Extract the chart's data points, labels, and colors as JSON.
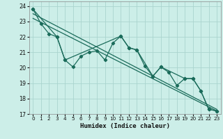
{
  "xlabel": "Humidex (Indice chaleur)",
  "bg_color": "#cceee8",
  "grid_color": "#aad4ce",
  "line_color": "#1a6b5a",
  "xlim": [
    -0.5,
    23.5
  ],
  "ylim": [
    17,
    24.3
  ],
  "yticks": [
    17,
    18,
    19,
    20,
    21,
    22,
    23,
    24
  ],
  "xticks": [
    0,
    1,
    2,
    3,
    4,
    5,
    6,
    7,
    8,
    9,
    10,
    11,
    12,
    13,
    14,
    15,
    16,
    17,
    18,
    19,
    20,
    21,
    22,
    23
  ],
  "series_all_x": [
    0,
    1,
    2,
    3,
    4,
    5,
    6,
    7,
    8,
    9,
    10,
    11,
    12,
    13,
    14,
    15,
    16,
    17,
    18,
    19,
    20,
    21,
    22,
    23
  ],
  "series_all_y": [
    23.8,
    22.85,
    22.2,
    22.0,
    20.5,
    20.05,
    20.75,
    21.0,
    21.1,
    20.5,
    21.6,
    22.05,
    21.3,
    21.15,
    20.1,
    19.45,
    20.05,
    19.7,
    18.85,
    19.3,
    19.3,
    18.5,
    17.3,
    17.2
  ],
  "series_sub_x": [
    0,
    3,
    4,
    11,
    12,
    13,
    15,
    16,
    19,
    20,
    21,
    22,
    23
  ],
  "series_sub_y": [
    23.8,
    22.0,
    20.5,
    22.05,
    21.3,
    21.15,
    19.45,
    20.05,
    19.3,
    19.3,
    18.5,
    17.3,
    17.2
  ],
  "trend1_x": [
    0,
    23
  ],
  "trend1_y": [
    23.5,
    17.3
  ],
  "trend2_x": [
    0,
    23
  ],
  "trend2_y": [
    23.2,
    17.2
  ]
}
